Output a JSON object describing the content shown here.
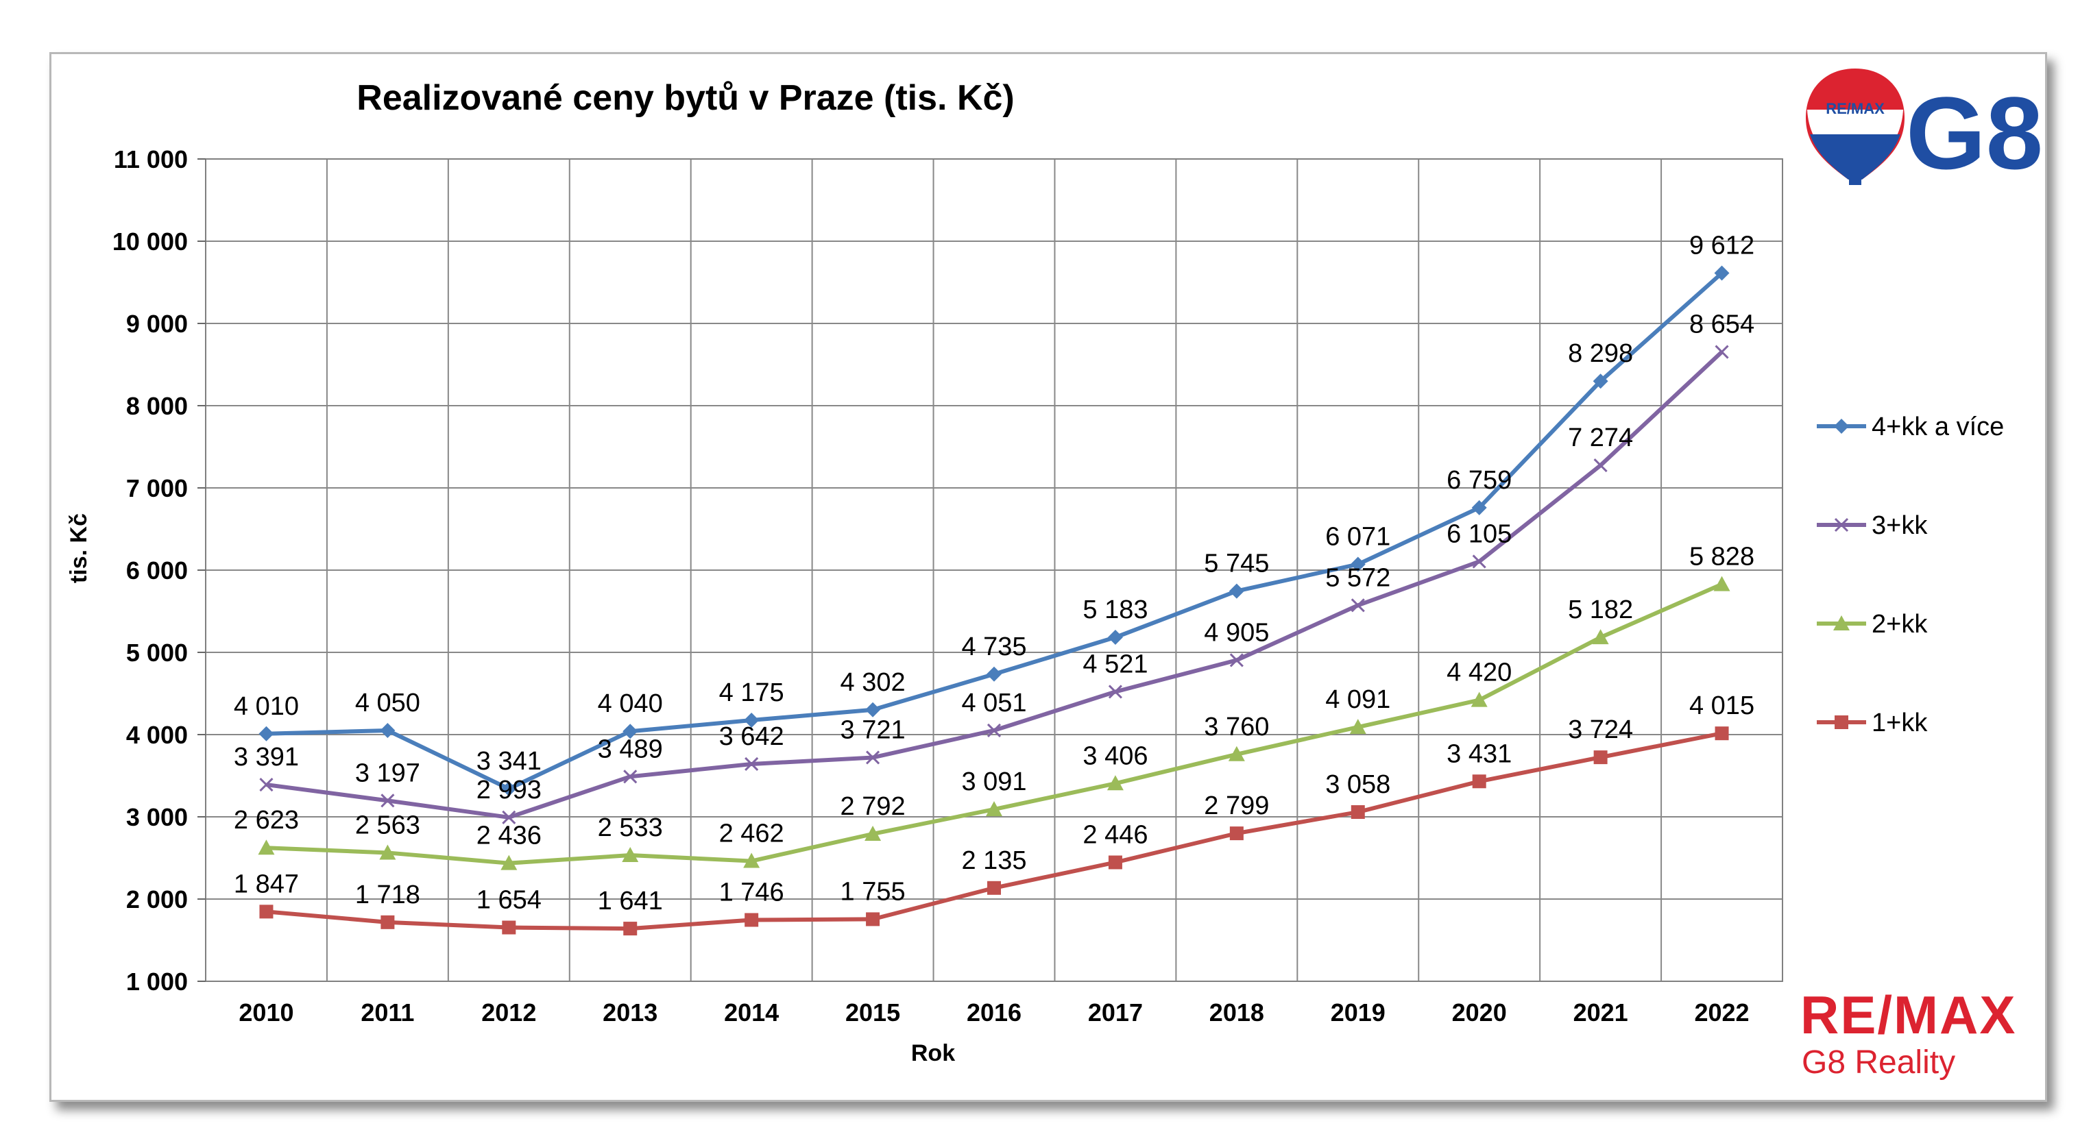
{
  "chart_data": {
    "type": "line",
    "title": "Realizované ceny bytů v Praze (tis. Kč)",
    "xlabel": "Rok",
    "ylabel": "tis. Kč",
    "ylim": [
      1000,
      11000
    ],
    "yticks": [
      1000,
      2000,
      3000,
      4000,
      5000,
      6000,
      7000,
      8000,
      9000,
      10000,
      11000
    ],
    "ytick_labels": [
      "1 000",
      "2 000",
      "3 000",
      "4 000",
      "5 000",
      "6 000",
      "7 000",
      "8 000",
      "9 000",
      "10 000",
      "11 000"
    ],
    "categories": [
      "2010",
      "2011",
      "2012",
      "2013",
      "2014",
      "2015",
      "2016",
      "2017",
      "2018",
      "2019",
      "2020",
      "2021",
      "2022"
    ],
    "grid": true,
    "legend_position": "right",
    "series": [
      {
        "name": "4+kk a více",
        "color": "#4a7ebb",
        "marker": "diamond",
        "values": [
          4010,
          4050,
          3341,
          4040,
          4175,
          4302,
          4735,
          5183,
          5745,
          6071,
          6759,
          8298,
          9612
        ],
        "labels": [
          "4 010",
          "4 050",
          "3 341",
          "4 040",
          "4 175",
          "4 302",
          "4 735",
          "5 183",
          "5 745",
          "6 071",
          "6 759",
          "8 298",
          "9 612"
        ]
      },
      {
        "name": "3+kk",
        "color": "#8064a2",
        "marker": "x",
        "values": [
          3391,
          3197,
          2993,
          3489,
          3642,
          3721,
          4051,
          4521,
          4905,
          5572,
          6105,
          7274,
          8654
        ],
        "labels": [
          "3 391",
          "3 197",
          "2 993",
          "3 489",
          "3 642",
          "3 721",
          "4 051",
          "4 521",
          "4 905",
          "5 572",
          "6 105",
          "7 274",
          "8 654"
        ]
      },
      {
        "name": "2+kk",
        "color": "#9bbb59",
        "marker": "triangle",
        "values": [
          2623,
          2563,
          2436,
          2533,
          2462,
          2792,
          3091,
          3406,
          3760,
          4091,
          4420,
          5182,
          5828
        ],
        "labels": [
          "2 623",
          "2 563",
          "2 436",
          "2 533",
          "2 462",
          "2 792",
          "3 091",
          "3 406",
          "3 760",
          "4 091",
          "4 420",
          "5 182",
          "5 828"
        ]
      },
      {
        "name": "1+kk",
        "color": "#c0504d",
        "marker": "square",
        "values": [
          1847,
          1718,
          1654,
          1641,
          1746,
          1755,
          2135,
          2446,
          2799,
          3058,
          3431,
          3724,
          4015
        ],
        "labels": [
          "1 847",
          "1 718",
          "1 654",
          "1 641",
          "1 746",
          "1 755",
          "2 135",
          "2 446",
          "2 799",
          "3 058",
          "3 431",
          "3 724",
          "4 015"
        ]
      }
    ]
  },
  "logos": {
    "balloon_text": "RE/MAX",
    "g8_text": "G8",
    "remax_text": "RE/MAX",
    "g8_reality_text": "G8 Reality",
    "brand_blue": "#1f4ea3",
    "brand_red": "#dc2330"
  }
}
